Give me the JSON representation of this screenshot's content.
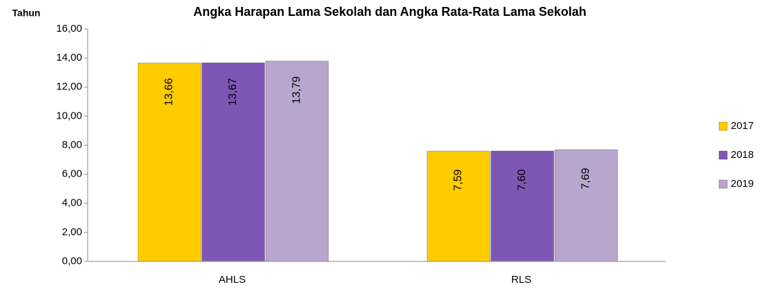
{
  "chart_data": {
    "type": "bar",
    "title": "Angka Harapan Lama Sekolah dan Angka Rata-Rata Lama Sekolah",
    "y_label": "Tahun",
    "categories": [
      "AHLS",
      "RLS"
    ],
    "series": [
      {
        "name": "2017",
        "color": "#FFCC00",
        "values": [
          13.66,
          7.59
        ],
        "value_labels": [
          "13,66",
          "7,59"
        ]
      },
      {
        "name": "2018",
        "color": "#7E57B4",
        "values": [
          13.67,
          7.6
        ],
        "value_labels": [
          "13,67",
          "7,60"
        ]
      },
      {
        "name": "2019",
        "color": "#B9A6CE",
        "values": [
          13.79,
          7.69
        ],
        "value_labels": [
          "13,79",
          "7,69"
        ]
      }
    ],
    "ylim": [
      0,
      16
    ],
    "yticks": [
      {
        "value": 0,
        "label": "0,00"
      },
      {
        "value": 2,
        "label": "2,00"
      },
      {
        "value": 4,
        "label": "4,00"
      },
      {
        "value": 6,
        "label": "6,00"
      },
      {
        "value": 8,
        "label": "8,00"
      },
      {
        "value": 10,
        "label": "10,00"
      },
      {
        "value": 12,
        "label": "12,00"
      },
      {
        "value": 14,
        "label": "14,00"
      },
      {
        "value": 16,
        "label": "16,00"
      }
    ],
    "legend": "right"
  }
}
